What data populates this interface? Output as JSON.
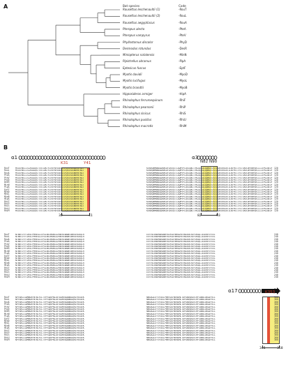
{
  "panel_a": {
    "label": "A",
    "header_species": "Bat species",
    "header_code": "Code",
    "taxa": [
      {
        "species": "Rousettus leschenaultii (1)",
        "code": "-RouT"
      },
      {
        "species": "Rousettus leschenaultii (2)",
        "code": "-RouL"
      },
      {
        "species": "Rousettus aegyptiacus",
        "code": "-RouA"
      },
      {
        "species": "Pteropus alecto",
        "code": "-PteA"
      },
      {
        "species": "Pteropus vampyrus",
        "code": "-PteV"
      },
      {
        "species": "Phyllostomus discolor",
        "code": "-PhyD"
      },
      {
        "species": "Desmodus rotundus",
        "code": "-DesR"
      },
      {
        "species": "Miniopterus natalensis",
        "code": "-MinN"
      },
      {
        "species": "Pipistrellus abramus",
        "code": "-PipA"
      },
      {
        "species": "Eptesicus fuscus",
        "code": "-EptF"
      },
      {
        "species": "Myotis davidii",
        "code": "-MyoD"
      },
      {
        "species": "Myotis lucifugus",
        "code": "-MyoL"
      },
      {
        "species": "Myotis brandtii",
        "code": "-MyoB"
      },
      {
        "species": "Hipposideros armiger",
        "code": "-HipA"
      },
      {
        "species": "Rhinolophus ferrumequinum",
        "code": "-RhiF"
      },
      {
        "species": "Rhinolophus pearsonii",
        "code": "-RhiP"
      },
      {
        "species": "Rhinolophus sinicus",
        "code": "-RhiS"
      },
      {
        "species": "Rhinolophus pusillus",
        "code": "-RhiU"
      },
      {
        "species": "Rhinolophus macrotis",
        "code": "-RhiM"
      }
    ]
  },
  "panel_b": {
    "label": "B",
    "alpha1": "α1",
    "alpha3": "α3",
    "alpha17": "α17",
    "beta5": "β5",
    "residues": {
      "k31": "K31",
      "y41": "Y41",
      "n82": "N82",
      "n90": "N90",
      "k353": "K353"
    },
    "ranges": {
      "r30": "30",
      "r41": "41",
      "r82": "82",
      "r93": "93",
      "r345": "345",
      "r358": "358"
    },
    "row_labels": [
      "RouT",
      "RouL",
      "RouA",
      "PteA",
      "PteV",
      "PhyD",
      "DesR",
      "MinN",
      "PipA",
      "EptF",
      "MyoD",
      "MyoL",
      "MyoB",
      "HipA",
      "RhiF",
      "RhiP",
      "RhiS",
      "RhiU",
      "RhiM"
    ],
    "blocks": [
      {
        "left_seq": "MSGSFWLLLSIAVAAQSTTEEIAKTFLEKFNYEAEELSYQSSVASWNYNTNIT",
        "right_seq": "KENVQNMNNAGDKWSAFLKEQSTLAQMYPLQEIQNLTVKLQLQALQQNGSSVLSEDKSKRLNTILNTMSTIYSTGKVCNPDNPQECLLLEPGLNEIMANSLDYNERLWAWESWRSEVGKQLRPLYEEYVVLKNEMARANHYEDYGDYWRGDYEVNGVDGYDYSRGQLIEDVEHTFEEIKPLYEHLHAYVRAKLMNAYPSYISPIGCLPAHLLGDMWGRFWTNLYSLTVPFGQKPNIDVTDAMVDQAWDAQRIFKEAEKFFVSVGLPNMTQGFWENSMLTDPGNVQKAVCHPTAWDLGKGDFRILMCTKVTMDDFLTAHHEMGHIQYDMAYAAQPFLLRNGANEGFHEAVGEIMSLSAATPKHLKSIGLLSPDFQEDNETEINFLLKQALTIVGTLPFTYMLEKWRWMVFKGEIPKDQWMKKWWEMKREIVGVVEPVPHDETYCDPASLFHVSNDYSFIRYYTRTLYQFQFQEALCQAAKHEGPLHKCDISNSTEAGQKLFNMLRLGKSEPWTLALENVVGAKNMNVRPLLNYFEPLFTWLKDQNKNSFVGWSTDWSPYA",
        "num": "120"
      },
      {
        "left_seq": "NTNNTIYYTDHICPMREGLLEPGLNEIMANSLDYNERLWAWESWRSEVGKQLR",
        "right_seq": "EEYVVLKNEMARANHYEDYGDYWRGDYEVNGVDGYDYSRGQLIEDVEHTFEEI",
        "num": "240"
      },
      {
        "left_seq": "NPYAHLLGDMWGRFWTNLYSLTVPFGQKPNIDVTDAMVDQAWDAQRIFKEAEK",
        "right_seq": "NWSAGAIFYVSVGLPNMTQGFWENSMLTDPGNVQKAVCHPTAWDLGKGDFRIL",
        "num": "360"
      }
    ]
  }
}
